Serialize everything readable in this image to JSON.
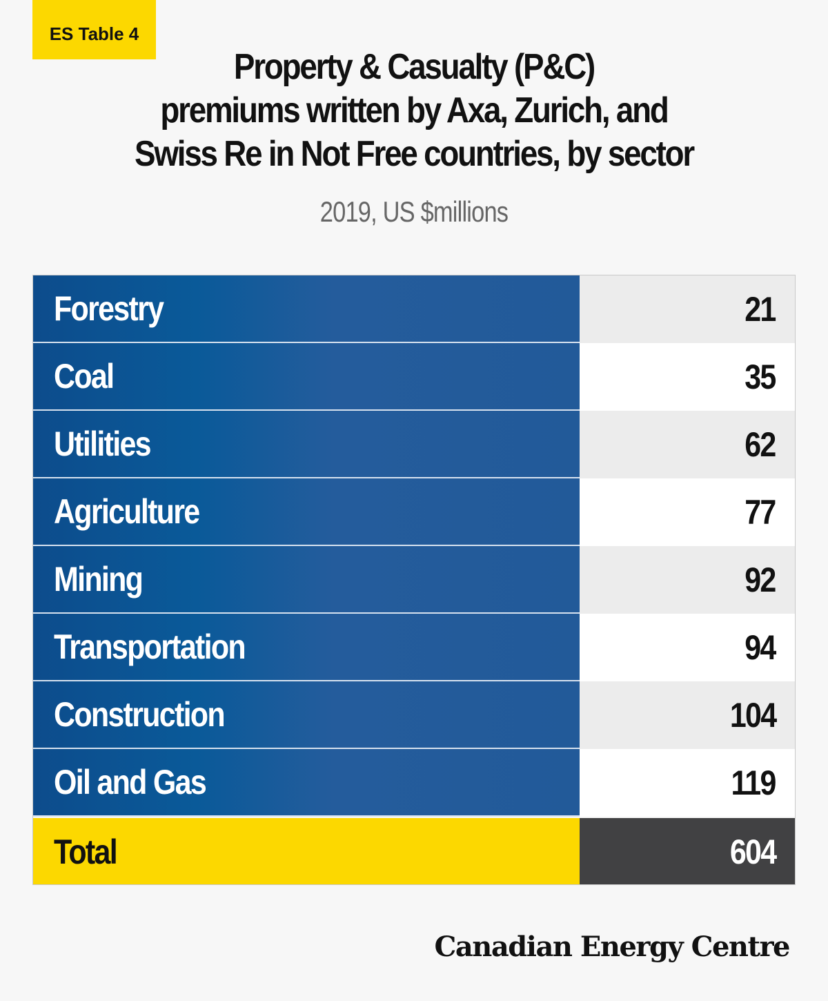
{
  "badge": {
    "label": "ES Table 4"
  },
  "header": {
    "title_lines": [
      "Property & Casualty (P&C)",
      "premiums written by Axa, Zurich, and",
      "Swiss Re in Not Free countries, by sector"
    ],
    "subtitle": "2019, US $millions"
  },
  "colors": {
    "label_cell": "#235c9c",
    "total_label_cell": "#fcd800",
    "total_value_cell": "#414143",
    "badge": "#fcd800",
    "shaded_value_cell": "#ececec"
  },
  "chart_data": {
    "type": "table",
    "title": "Property & Casualty (P&C) premiums written by Axa, Zurich, and Swiss Re in Not Free countries, by sector",
    "subtitle": "2019, US $millions",
    "rows": [
      {
        "sector": "Forestry",
        "value": "21"
      },
      {
        "sector": "Coal",
        "value": "35"
      },
      {
        "sector": "Utilities",
        "value": "62"
      },
      {
        "sector": "Agriculture",
        "value": "77"
      },
      {
        "sector": "Mining",
        "value": "92"
      },
      {
        "sector": "Transportation",
        "value": "94"
      },
      {
        "sector": "Construction",
        "value": "104"
      },
      {
        "sector": "Oil and Gas",
        "value": "119"
      }
    ],
    "total": {
      "label": "Total",
      "value": "604"
    }
  },
  "footer": {
    "brand": "Canadian Energy Centre"
  }
}
